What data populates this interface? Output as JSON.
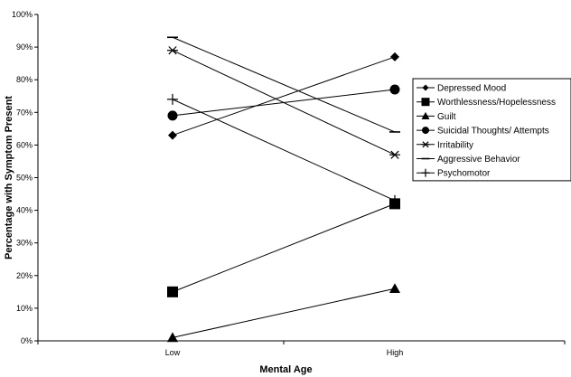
{
  "chart_data": {
    "type": "line",
    "title": "",
    "xlabel": "Mental Age",
    "ylabel": "Percentage with Symptom Present",
    "categories": [
      "Low",
      "High"
    ],
    "ylim": [
      0,
      100
    ],
    "y_ticks": [
      "0%",
      "10%",
      "20%",
      "30%",
      "40%",
      "50%",
      "60%",
      "70%",
      "80%",
      "90%",
      "100%"
    ],
    "grid": false,
    "legend_position": "right",
    "series": [
      {
        "name": "Depressed Mood",
        "marker": "diamond",
        "values": [
          63,
          87
        ]
      },
      {
        "name": "Worthlessness/Hopelessness",
        "marker": "square",
        "values": [
          15,
          42
        ]
      },
      {
        "name": "Guilt",
        "marker": "triangle",
        "values": [
          1,
          16
        ]
      },
      {
        "name": "Suicidal Thoughts/ Attempts",
        "marker": "circle",
        "values": [
          69,
          77
        ]
      },
      {
        "name": "Irritability",
        "marker": "asterisk",
        "values": [
          89,
          57
        ]
      },
      {
        "name": "Aggressive Behavior",
        "marker": "dash",
        "values": [
          93,
          64
        ]
      },
      {
        "name": "Psychomotor",
        "marker": "plus",
        "values": [
          74,
          43
        ]
      }
    ]
  }
}
